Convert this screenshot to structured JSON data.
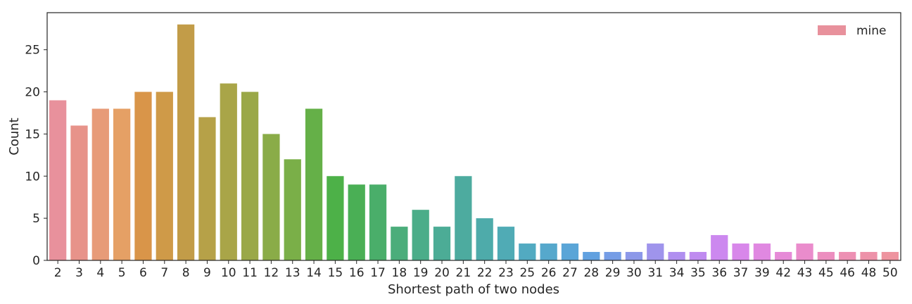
{
  "chart_data": {
    "type": "bar",
    "title": "",
    "xlabel": "Shortest path of two nodes",
    "ylabel": "Count",
    "ylim": [
      0,
      29.4
    ],
    "yticks": [
      0,
      5,
      10,
      15,
      20,
      25
    ],
    "grid": false,
    "legend": {
      "position": "top-right",
      "entries": [
        {
          "label": "mine",
          "color": "#e8919c"
        }
      ]
    },
    "categories": [
      "2",
      "3",
      "4",
      "5",
      "6",
      "7",
      "8",
      "9",
      "10",
      "11",
      "12",
      "13",
      "14",
      "15",
      "16",
      "17",
      "18",
      "19",
      "20",
      "21",
      "22",
      "23",
      "25",
      "26",
      "27",
      "28",
      "29",
      "30",
      "31",
      "34",
      "35",
      "36",
      "37",
      "39",
      "42",
      "43",
      "45",
      "46",
      "48",
      "50"
    ],
    "series": [
      {
        "name": "mine",
        "values": [
          19,
          16,
          18,
          18,
          20,
          20,
          28,
          17,
          21,
          20,
          15,
          12,
          18,
          10,
          9,
          9,
          4,
          6,
          4,
          10,
          5,
          4,
          2,
          2,
          2,
          1,
          1,
          1,
          2,
          1,
          1,
          3,
          2,
          2,
          1,
          2,
          1,
          1,
          1,
          1
        ],
        "colors": [
          "#e8919c",
          "#e7938a",
          "#e79b78",
          "#e5a065",
          "#d99549",
          "#cf9a48",
          "#c29c48",
          "#b6a148",
          "#a9a548",
          "#9aa848",
          "#8aac48",
          "#7aaf48",
          "#65b048",
          "#4db148",
          "#4aaf55",
          "#4aae6a",
          "#4bad7b",
          "#4bad89",
          "#4cac96",
          "#4dab9f",
          "#4eabaa",
          "#50abb5",
          "#52aac1",
          "#56a8cc",
          "#5aa5d7",
          "#61a1e0",
          "#759de6",
          "#8c98e9",
          "#9f94ec",
          "#b08ff0",
          "#bf8bf0",
          "#cc88ef",
          "#d887ea",
          "#e088e1",
          "#e68ad7",
          "#ea8ccc",
          "#ec8ebf",
          "#ed90b3",
          "#ed92a9",
          "#ee949f"
        ]
      }
    ]
  }
}
